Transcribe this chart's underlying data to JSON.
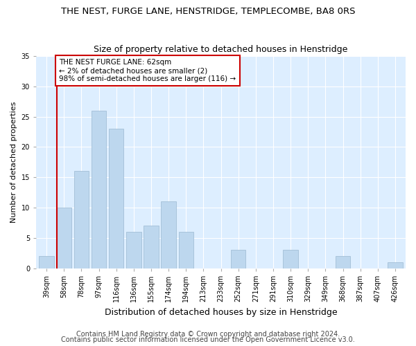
{
  "title": "THE NEST, FURGE LANE, HENSTRIDGE, TEMPLECOMBE, BA8 0RS",
  "subtitle": "Size of property relative to detached houses in Henstridge",
  "xlabel": "Distribution of detached houses by size in Henstridge",
  "ylabel": "Number of detached properties",
  "categories": [
    "39sqm",
    "58sqm",
    "78sqm",
    "97sqm",
    "116sqm",
    "136sqm",
    "155sqm",
    "174sqm",
    "194sqm",
    "213sqm",
    "233sqm",
    "252sqm",
    "271sqm",
    "291sqm",
    "310sqm",
    "329sqm",
    "349sqm",
    "368sqm",
    "387sqm",
    "407sqm",
    "426sqm"
  ],
  "values": [
    2,
    10,
    16,
    26,
    23,
    6,
    7,
    11,
    6,
    0,
    0,
    3,
    0,
    0,
    3,
    0,
    0,
    2,
    0,
    0,
    1
  ],
  "bar_color": "#bdd7ee",
  "bar_edge_color": "#9ab8d0",
  "marker_color": "#cc0000",
  "marker_index": 1,
  "annotation_text": "THE NEST FURGE LANE: 62sqm\n← 2% of detached houses are smaller (2)\n98% of semi-detached houses are larger (116) →",
  "annotation_box_color": "#ffffff",
  "annotation_box_edge": "#cc0000",
  "ylim": [
    0,
    35
  ],
  "yticks": [
    0,
    5,
    10,
    15,
    20,
    25,
    30,
    35
  ],
  "background_color": "#ddeeff",
  "fig_background": "#ffffff",
  "footer1": "Contains HM Land Registry data © Crown copyright and database right 2024.",
  "footer2": "Contains public sector information licensed under the Open Government Licence v3.0.",
  "title_fontsize": 9.5,
  "subtitle_fontsize": 9,
  "xlabel_fontsize": 9,
  "ylabel_fontsize": 8,
  "tick_fontsize": 7,
  "footer_fontsize": 7,
  "ann_fontsize": 7.5
}
